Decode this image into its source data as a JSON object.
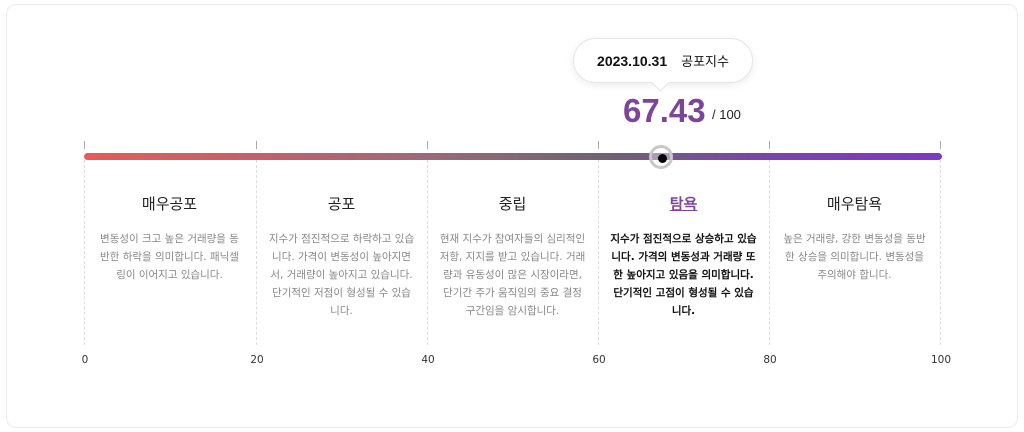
{
  "tooltip": {
    "date": "2023.10.31",
    "label": "공포지수"
  },
  "index": {
    "value": "67.43",
    "max": "/ 100",
    "value_num": 67.43
  },
  "colors": {
    "accent": "#7b4697",
    "gradient_start": "#e8595a",
    "gradient_end": "#7a3bbf"
  },
  "segments": [
    {
      "title": "매우공포",
      "desc": "변동성이 크고 높은 거래량을 동반한 하락을 의미합니다. 패닉셀링이 이어지고 있습니다."
    },
    {
      "title": "공포",
      "desc": "지수가 점진적으로 하락하고 있습니다. 가격이 변동성이 높아지면서, 거래량이 높아지고 있습니다. 단기적인 저점이 형성될 수 있습니다."
    },
    {
      "title": "중립",
      "desc": "현재 지수가 참여자들의 심리적인 저항, 지지를 받고 있습니다. 거래량과 유동성이 많은 시장이라면, 단기간 주가 움직임의 중요 결정 구간임을 암시합니다."
    },
    {
      "title": "탐욕",
      "desc": "지수가 점진적으로 상승하고 있습니다. 가격의 변동성과 거래량 또한 높아지고 있음을 의미합니다. 단기적인 고점이 형성될 수 있습니다.",
      "active": true
    },
    {
      "title": "매우탐욕",
      "desc": "높은 거래량, 강한 변동성을 동반한 상승을 의미합니다. 변동성을 주의해야 합니다."
    }
  ],
  "scale": [
    "0",
    "20",
    "40",
    "60",
    "80",
    "100"
  ]
}
